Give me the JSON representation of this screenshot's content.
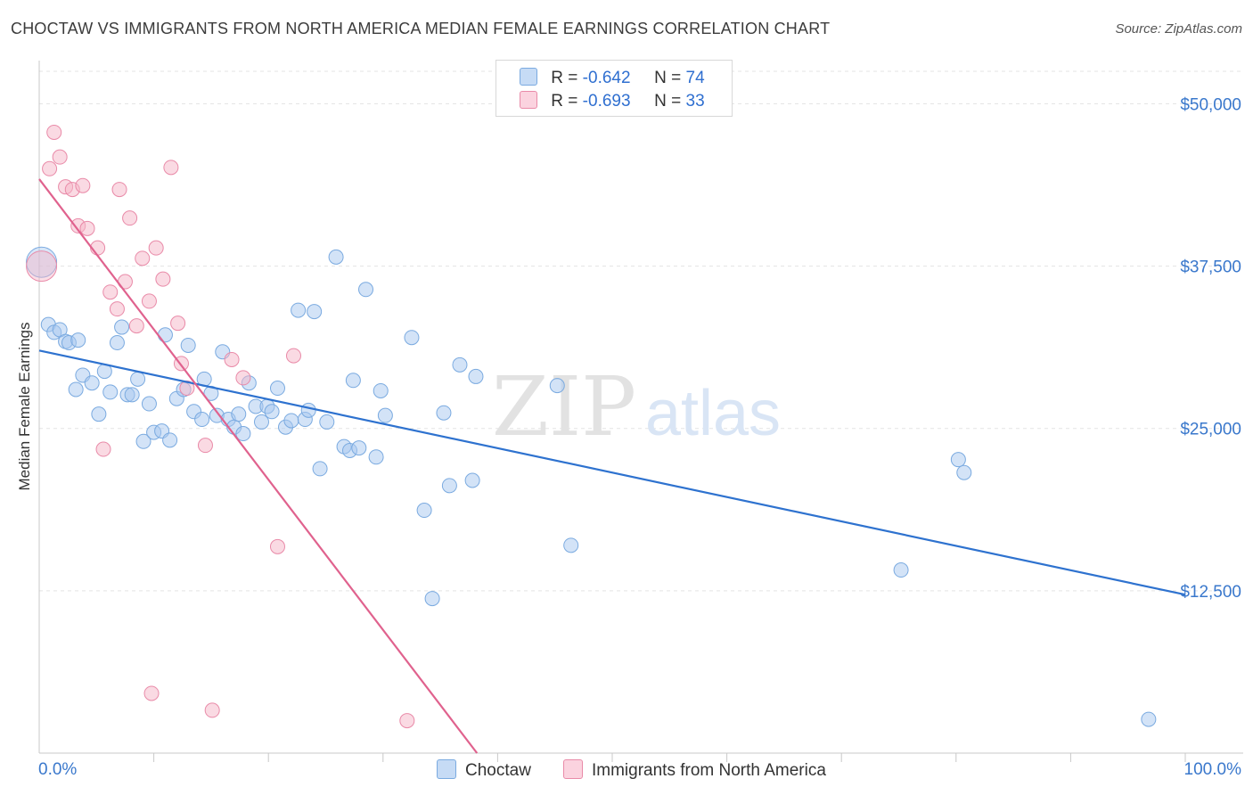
{
  "header": {
    "title": "CHOCTAW VS IMMIGRANTS FROM NORTH AMERICA MEDIAN FEMALE EARNINGS CORRELATION CHART",
    "source": "Source: ZipAtlas.com"
  },
  "watermark": {
    "zip": "ZIP",
    "atlas": "atlas"
  },
  "legend": {
    "r_label": "R =",
    "n_label": "N =",
    "items": [
      {
        "name": "Choctaw",
        "r": "-0.642",
        "n": "74",
        "color": "#a8c8f0"
      },
      {
        "name": "Immigrants from North America",
        "r": "-0.693",
        "n": "33",
        "color": "#f6b6c8"
      }
    ]
  },
  "colors": {
    "blue_fill": "#a8c8f0",
    "blue_stroke": "#7aaae0",
    "blue_line": "#2e72cf",
    "pink_fill": "#f6b6c8",
    "pink_stroke": "#e98aa8",
    "pink_line": "#e0628e",
    "axis_label": "#3a78cc",
    "grid": "#e3e3e3"
  },
  "chart_data": {
    "type": "scatter",
    "title": "CHOCTAW VS IMMIGRANTS FROM NORTH AMERICA MEDIAN FEMALE EARNINGS CORRELATION CHART",
    "xlabel": "",
    "ylabel": "Median Female Earnings",
    "xlim": [
      0,
      100
    ],
    "ylim": [
      0,
      52500
    ],
    "x_tick_labels": [
      "0.0%",
      "100.0%"
    ],
    "y_ticks": [
      12500,
      25000,
      37500,
      50000
    ],
    "y_tick_labels": [
      "$12,500",
      "$25,000",
      "$37,500",
      "$50,000"
    ],
    "grid": true,
    "legend_position": "top-center",
    "series": [
      {
        "name": "Choctaw",
        "r": -0.642,
        "n": 74,
        "trend": {
          "x": [
            0,
            100
          ],
          "y": [
            31000,
            12200
          ]
        },
        "points": [
          {
            "x": 0.2,
            "y": 37800,
            "big": true
          },
          {
            "x": 0.8,
            "y": 33000
          },
          {
            "x": 1.3,
            "y": 32400
          },
          {
            "x": 1.8,
            "y": 32600
          },
          {
            "x": 2.3,
            "y": 31700
          },
          {
            "x": 2.6,
            "y": 31600
          },
          {
            "x": 3.4,
            "y": 31800
          },
          {
            "x": 3.2,
            "y": 28000
          },
          {
            "x": 3.8,
            "y": 29100
          },
          {
            "x": 4.6,
            "y": 28500
          },
          {
            "x": 5.2,
            "y": 26100
          },
          {
            "x": 5.7,
            "y": 29400
          },
          {
            "x": 6.2,
            "y": 27800
          },
          {
            "x": 6.8,
            "y": 31600
          },
          {
            "x": 7.2,
            "y": 32800
          },
          {
            "x": 7.7,
            "y": 27600
          },
          {
            "x": 8.1,
            "y": 27600
          },
          {
            "x": 8.6,
            "y": 28800
          },
          {
            "x": 9.1,
            "y": 24000
          },
          {
            "x": 9.6,
            "y": 26900
          },
          {
            "x": 10.0,
            "y": 24700
          },
          {
            "x": 10.7,
            "y": 24800
          },
          {
            "x": 11.0,
            "y": 32200
          },
          {
            "x": 11.4,
            "y": 24100
          },
          {
            "x": 12.0,
            "y": 27300
          },
          {
            "x": 12.6,
            "y": 28000
          },
          {
            "x": 13.0,
            "y": 31400
          },
          {
            "x": 13.5,
            "y": 26300
          },
          {
            "x": 14.2,
            "y": 25700
          },
          {
            "x": 14.4,
            "y": 28800
          },
          {
            "x": 15.0,
            "y": 27700
          },
          {
            "x": 15.5,
            "y": 26000
          },
          {
            "x": 16.0,
            "y": 30900
          },
          {
            "x": 16.5,
            "y": 25700
          },
          {
            "x": 17.0,
            "y": 25100
          },
          {
            "x": 17.4,
            "y": 26100
          },
          {
            "x": 17.8,
            "y": 24600
          },
          {
            "x": 18.3,
            "y": 28500
          },
          {
            "x": 18.9,
            "y": 26700
          },
          {
            "x": 19.4,
            "y": 25500
          },
          {
            "x": 19.9,
            "y": 26700
          },
          {
            "x": 20.3,
            "y": 26300
          },
          {
            "x": 20.8,
            "y": 28100
          },
          {
            "x": 21.5,
            "y": 25100
          },
          {
            "x": 22.0,
            "y": 25600
          },
          {
            "x": 22.6,
            "y": 34100
          },
          {
            "x": 23.2,
            "y": 25700
          },
          {
            "x": 23.5,
            "y": 26400
          },
          {
            "x": 24.0,
            "y": 34000
          },
          {
            "x": 24.5,
            "y": 21900
          },
          {
            "x": 25.1,
            "y": 25500
          },
          {
            "x": 25.9,
            "y": 38200
          },
          {
            "x": 26.6,
            "y": 23600
          },
          {
            "x": 27.1,
            "y": 23300
          },
          {
            "x": 27.4,
            "y": 28700
          },
          {
            "x": 27.9,
            "y": 23500
          },
          {
            "x": 28.5,
            "y": 35700
          },
          {
            "x": 29.4,
            "y": 22800
          },
          {
            "x": 29.8,
            "y": 27900
          },
          {
            "x": 30.2,
            "y": 26000
          },
          {
            "x": 32.5,
            "y": 32000
          },
          {
            "x": 33.6,
            "y": 18700
          },
          {
            "x": 34.3,
            "y": 11900
          },
          {
            "x": 35.3,
            "y": 26200
          },
          {
            "x": 35.8,
            "y": 20600
          },
          {
            "x": 36.7,
            "y": 29900
          },
          {
            "x": 37.8,
            "y": 21000
          },
          {
            "x": 38.1,
            "y": 29000
          },
          {
            "x": 45.2,
            "y": 28300
          },
          {
            "x": 46.4,
            "y": 16000
          },
          {
            "x": 75.2,
            "y": 14100
          },
          {
            "x": 80.2,
            "y": 22600
          },
          {
            "x": 80.7,
            "y": 21600
          },
          {
            "x": 96.8,
            "y": 2600
          }
        ]
      },
      {
        "name": "Immigrants from North America",
        "r": -0.693,
        "n": 33,
        "trend": {
          "x": [
            0,
            38.2
          ],
          "y": [
            44200,
            0
          ]
        },
        "points": [
          {
            "x": 0.2,
            "y": 37500,
            "big": true
          },
          {
            "x": 0.9,
            "y": 45000
          },
          {
            "x": 1.3,
            "y": 47800
          },
          {
            "x": 1.8,
            "y": 45900
          },
          {
            "x": 2.3,
            "y": 43600
          },
          {
            "x": 2.9,
            "y": 43400
          },
          {
            "x": 3.4,
            "y": 40600
          },
          {
            "x": 3.8,
            "y": 43700
          },
          {
            "x": 4.2,
            "y": 40400
          },
          {
            "x": 5.1,
            "y": 38900
          },
          {
            "x": 5.6,
            "y": 23400
          },
          {
            "x": 6.2,
            "y": 35500
          },
          {
            "x": 6.8,
            "y": 34200
          },
          {
            "x": 7.0,
            "y": 43400
          },
          {
            "x": 7.5,
            "y": 36300
          },
          {
            "x": 7.9,
            "y": 41200
          },
          {
            "x": 8.5,
            "y": 32900
          },
          {
            "x": 9.0,
            "y": 38100
          },
          {
            "x": 9.6,
            "y": 34800
          },
          {
            "x": 9.8,
            "y": 4600
          },
          {
            "x": 10.2,
            "y": 38900
          },
          {
            "x": 10.8,
            "y": 36500
          },
          {
            "x": 11.5,
            "y": 45100
          },
          {
            "x": 12.1,
            "y": 33100
          },
          {
            "x": 12.4,
            "y": 30000
          },
          {
            "x": 12.9,
            "y": 28100
          },
          {
            "x": 14.5,
            "y": 23700
          },
          {
            "x": 15.1,
            "y": 3300
          },
          {
            "x": 16.8,
            "y": 30300
          },
          {
            "x": 17.8,
            "y": 28900
          },
          {
            "x": 20.8,
            "y": 15900
          },
          {
            "x": 22.2,
            "y": 30600
          },
          {
            "x": 32.1,
            "y": 2500
          }
        ]
      }
    ]
  }
}
